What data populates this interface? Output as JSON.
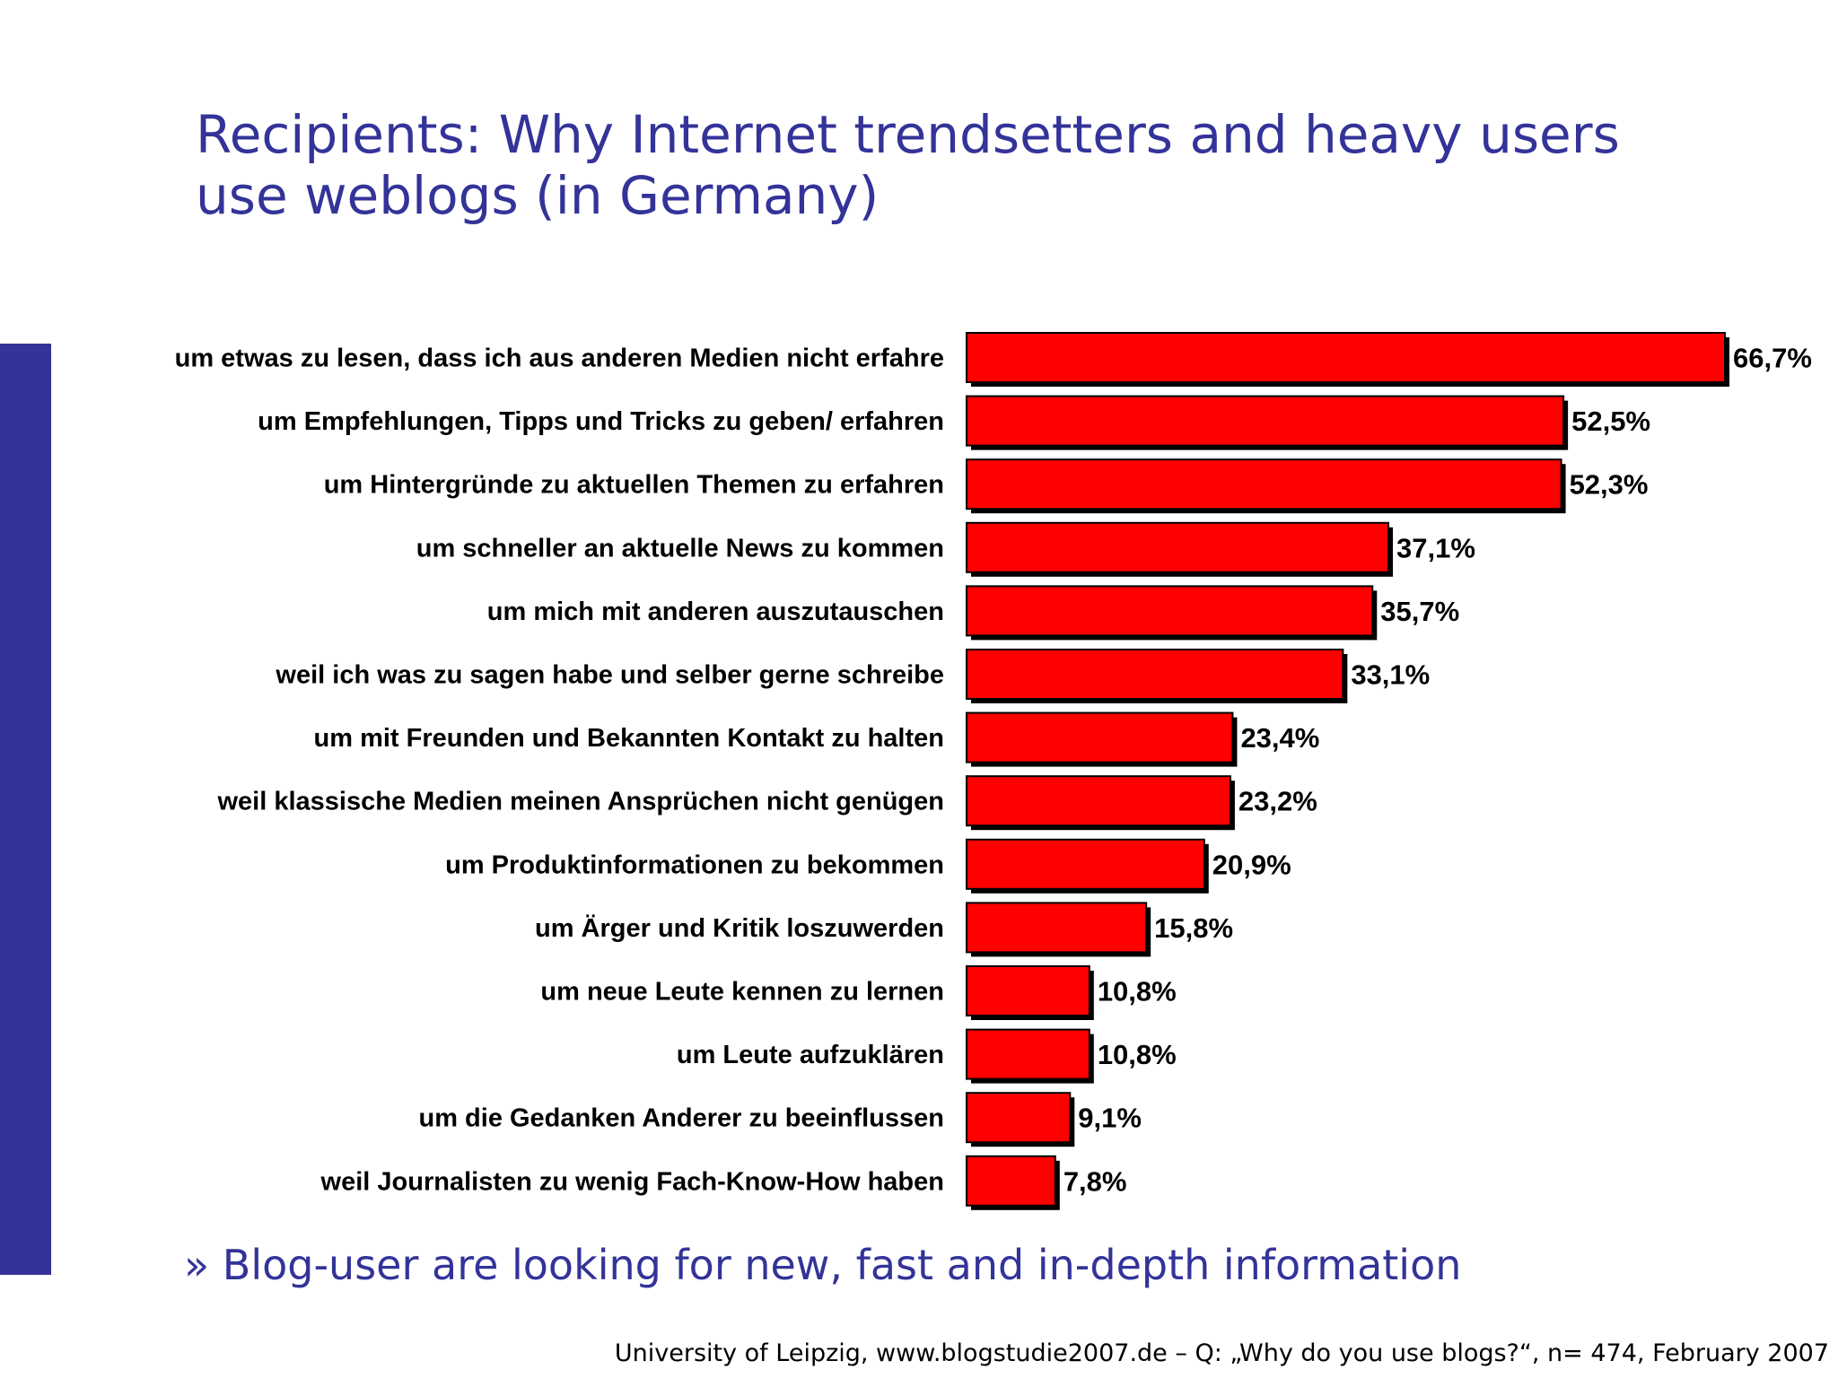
{
  "slide": {
    "title_line1": "Recipients: Why Internet trendsetters and heavy users",
    "title_line2": "use weblogs (in Germany)",
    "conclusion": "» Blog-user are looking for new, fast and in-depth information",
    "source": "University of Leipzig, www.blogstudie2007.de – Q: „Why do you use blogs?“, n= 474, February 2007"
  },
  "colors": {
    "accent": "#333399",
    "bar": "#ff0000",
    "bar_shadow": "#000000"
  },
  "chart_data": {
    "type": "bar",
    "orientation": "horizontal",
    "title": "",
    "xlabel": "",
    "ylabel": "",
    "xlim": [
      0,
      66.7
    ],
    "grid": false,
    "categories": [
      "um etwas zu lesen, dass ich aus anderen Medien nicht erfahre",
      "um Empfehlungen, Tipps und Tricks zu geben/ erfahren",
      "um Hintergründe zu aktuellen Themen zu erfahren",
      "um schneller an aktuelle News zu kommen",
      "um mich mit anderen auszutauschen",
      "weil ich was zu sagen habe und selber gerne schreibe",
      "um mit Freunden und Bekannten Kontakt zu halten",
      "weil klassische Medien meinen Ansprüchen nicht genügen",
      "um Produktinformationen zu bekommen",
      "um Ärger und Kritik loszuwerden",
      "um neue Leute kennen zu lernen",
      "um Leute aufzuklären",
      "um die Gedanken Anderer zu beeinflussen",
      "weil Journalisten zu wenig Fach-Know-How haben"
    ],
    "values": [
      66.7,
      52.5,
      52.3,
      37.1,
      35.7,
      33.1,
      23.4,
      23.2,
      20.9,
      15.8,
      10.8,
      10.8,
      9.1,
      7.8
    ],
    "value_labels": [
      "66,7%",
      "52,5%",
      "52,3%",
      "37,1%",
      "35,7%",
      "33,1%",
      "23,4%",
      "23,2%",
      "20,9%",
      "15,8%",
      "10,8%",
      "10,8%",
      "9,1%",
      "7,8%"
    ]
  }
}
